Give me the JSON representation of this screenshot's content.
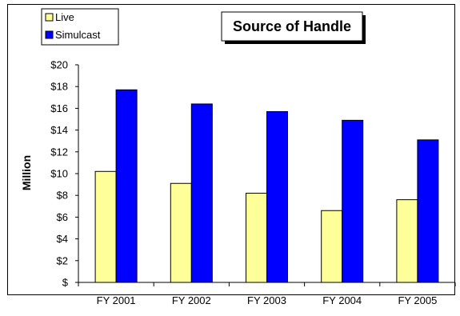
{
  "chart_data": {
    "type": "bar",
    "title": "Source of Handle",
    "xlabel": "",
    "ylabel": "Million",
    "categories": [
      "FY 2001",
      "FY 2002",
      "FY 2003",
      "FY 2004",
      "FY 2005"
    ],
    "series": [
      {
        "name": "Live",
        "color": "#FFFF99",
        "values": [
          10.2,
          9.1,
          8.2,
          6.6,
          7.6
        ]
      },
      {
        "name": "Simulcast",
        "color": "#0000FF",
        "values": [
          17.7,
          16.4,
          15.7,
          14.9,
          13.1
        ]
      }
    ],
    "ylim": [
      0,
      20
    ],
    "ytick_labels": [
      "$",
      "$2",
      "$4",
      "$6",
      "$8",
      "$10",
      "$12",
      "$14",
      "$16",
      "$18",
      "$20"
    ],
    "grid": false,
    "legend_position": "top-left"
  }
}
